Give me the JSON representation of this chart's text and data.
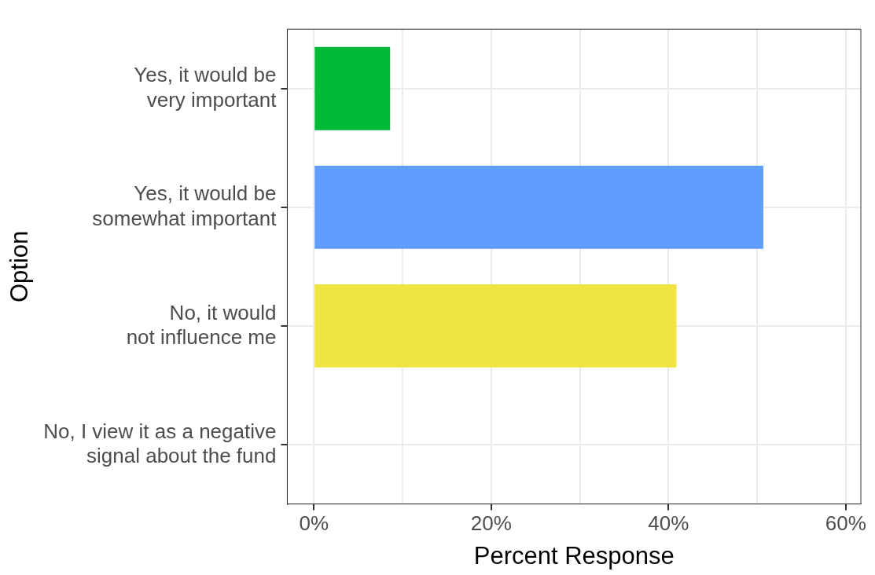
{
  "chart_data": {
    "type": "bar",
    "orientation": "horizontal",
    "categories": [
      "Yes, it would be\nvery important",
      "Yes, it would be\nsomewhat important",
      "No, it would\nnot influence me",
      "No, I view it as a negative\nsignal about the fund"
    ],
    "values": [
      8.6,
      50.7,
      40.9,
      0
    ],
    "colors": [
      "#00ba38",
      "#619cff",
      "#f0e442",
      "#f8766d"
    ],
    "xlabel": "Percent Response",
    "ylabel": "Option",
    "xlim": [
      -3,
      61.7
    ],
    "xticks": [
      {
        "value": 0,
        "label": "0%"
      },
      {
        "value": 10,
        "label": null
      },
      {
        "value": 20,
        "label": "20%"
      },
      {
        "value": 30,
        "label": null
      },
      {
        "value": 40,
        "label": "40%"
      },
      {
        "value": 50,
        "label": null
      },
      {
        "value": 60,
        "label": "60%"
      }
    ],
    "grid": true,
    "legend": false
  }
}
